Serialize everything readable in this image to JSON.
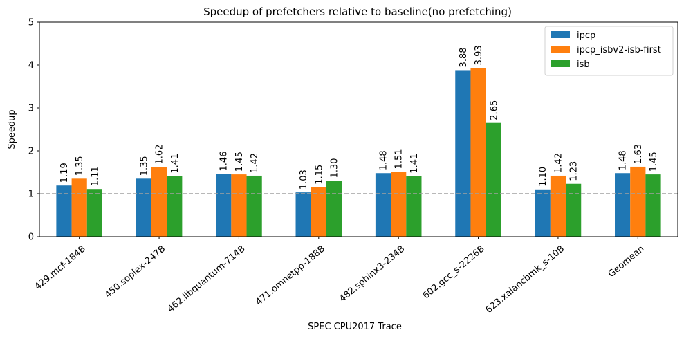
{
  "chart_data": {
    "type": "bar",
    "title": "Speedup of prefetchers relative to baseline(no prefetching)",
    "xlabel": "SPEC CPU2017 Trace",
    "ylabel": "Speedup",
    "ylim": [
      0,
      5
    ],
    "yticks": [
      "0",
      "1",
      "2",
      "3",
      "4",
      "5"
    ],
    "reference_line": 1,
    "legend_position": "top-right",
    "grid": false,
    "categories": [
      "429.mcf-184B",
      "450.soplex-247B",
      "462.libquantum-714B",
      "471.omnetpp-188B",
      "482.sphinx3-234B",
      "602.gcc_s-2226B",
      "623.xalancbmk_s-10B",
      "Geomean"
    ],
    "series": [
      {
        "name": "ipcp",
        "color": "#1f77b4",
        "values": [
          1.19,
          1.35,
          1.46,
          1.03,
          1.48,
          3.88,
          1.1,
          1.48
        ],
        "labels": [
          "1.19",
          "1.35",
          "1.46",
          "1.03",
          "1.48",
          "3.88",
          "1.10",
          "1.48"
        ]
      },
      {
        "name": "ipcp_isbv2-isb-first",
        "color": "#ff7f0e",
        "values": [
          1.35,
          1.62,
          1.45,
          1.15,
          1.51,
          3.93,
          1.42,
          1.63
        ],
        "labels": [
          "1.35",
          "1.62",
          "1.45",
          "1.15",
          "1.51",
          "3.93",
          "1.42",
          "1.63"
        ]
      },
      {
        "name": "isb",
        "color": "#2ca02c",
        "values": [
          1.11,
          1.41,
          1.42,
          1.3,
          1.41,
          2.65,
          1.23,
          1.45
        ],
        "labels": [
          "1.11",
          "1.41",
          "1.42",
          "1.30",
          "1.41",
          "2.65",
          "1.23",
          "1.45"
        ]
      }
    ]
  }
}
